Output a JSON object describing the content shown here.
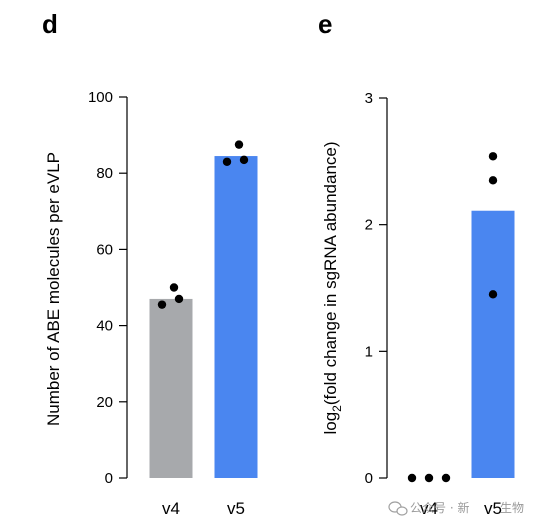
{
  "chart_data": [
    {
      "panel": "d",
      "type": "bar",
      "categories": [
        "v4",
        "v5"
      ],
      "values": [
        47,
        84.5
      ],
      "points": [
        [
          45.5,
          50,
          47
        ],
        [
          83,
          87.5,
          83.5
        ]
      ],
      "bar_colors": [
        "#a7a9ac",
        "#4a86f0"
      ],
      "ylabel": "Number of ABE molecules per eVLP",
      "ylim": [
        0,
        100
      ],
      "yticks": [
        0,
        20,
        40,
        60,
        80,
        100
      ]
    },
    {
      "panel": "e",
      "type": "bar",
      "categories": [
        "v4",
        "v5"
      ],
      "values": [
        0,
        2.11
      ],
      "points": [
        [
          0,
          0,
          0
        ],
        [
          2.54,
          2.35,
          1.45
        ]
      ],
      "bar_colors": [
        "#a7a9ac",
        "#4a86f0"
      ],
      "ylabel_main": "log",
      "ylabel_sub": "2",
      "ylabel_rest": "(fold change in sgRNA abundance)",
      "ylim": [
        0,
        3
      ],
      "yticks": [
        0,
        1,
        2,
        3
      ]
    }
  ],
  "watermark": {
    "text": "公众号 · 新",
    "text2": "生物",
    "icon": "wechat-icon"
  }
}
